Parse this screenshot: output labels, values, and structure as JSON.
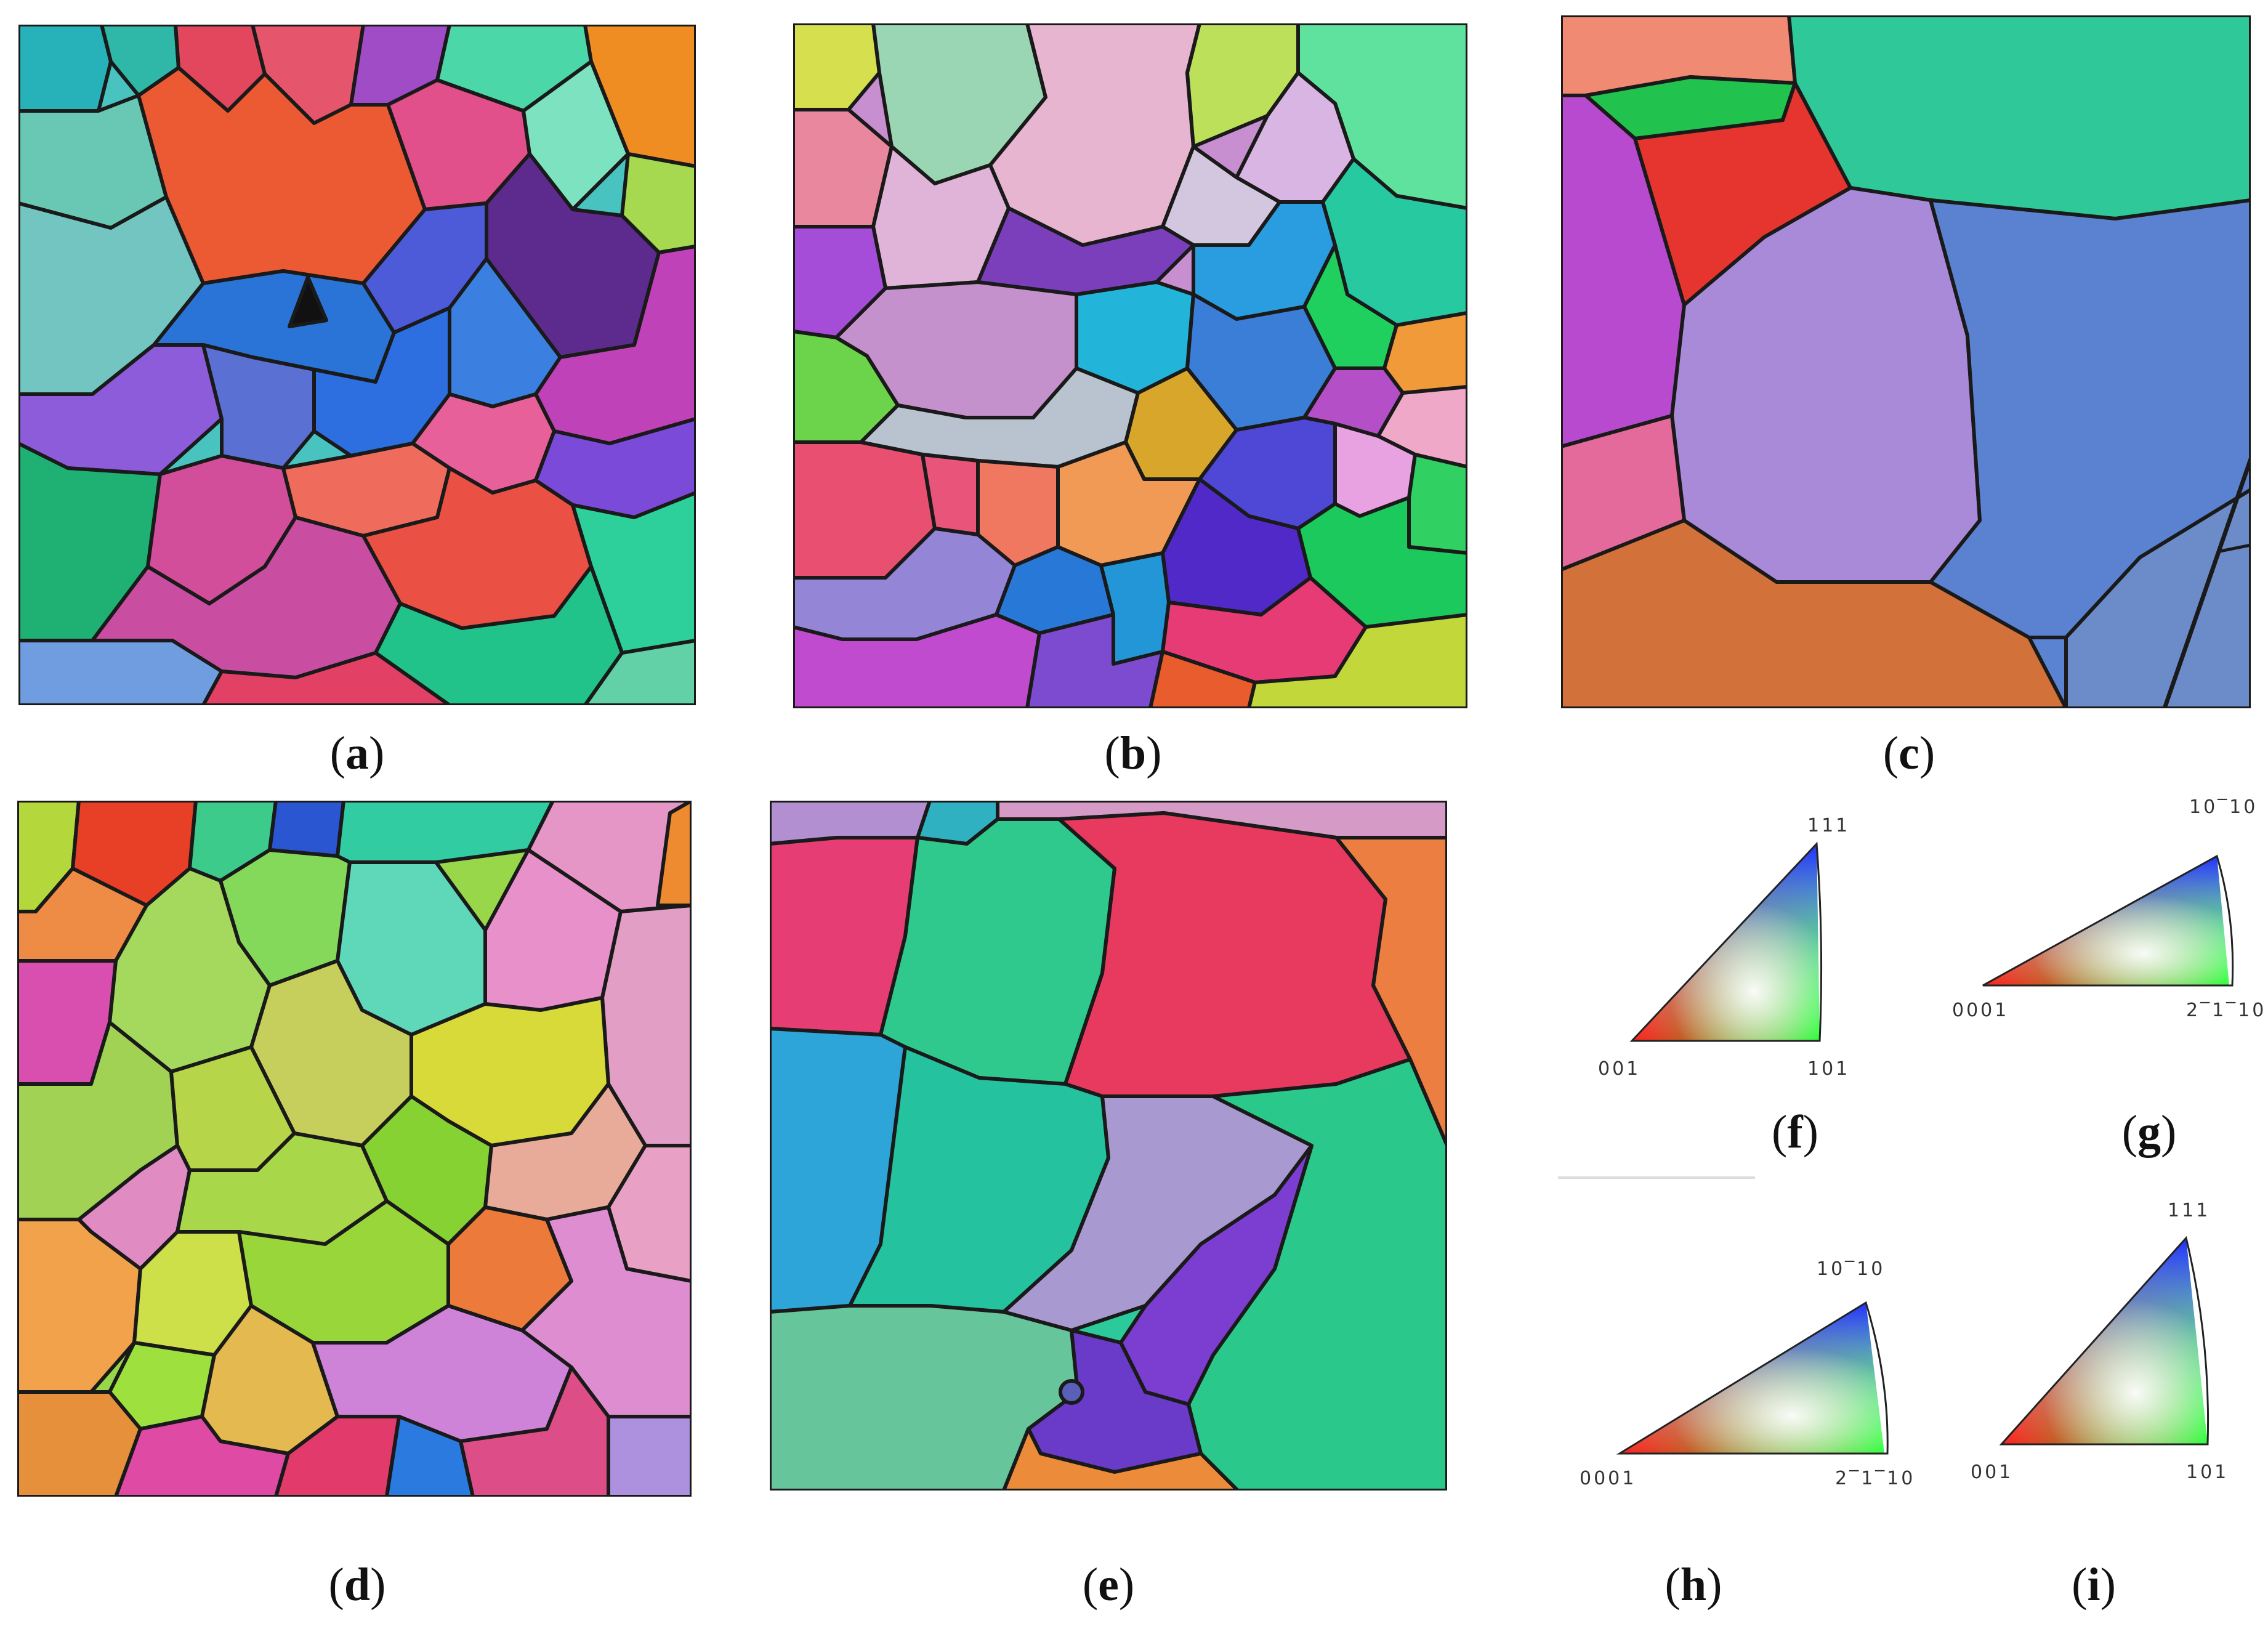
{
  "panels": {
    "a": {
      "label": "a"
    },
    "b": {
      "label": "b"
    },
    "c": {
      "label": "c"
    },
    "d": {
      "label": "d"
    },
    "e": {
      "label": "e"
    },
    "f": {
      "label": "f"
    },
    "g": {
      "label": "g"
    },
    "h": {
      "label": "h"
    },
    "i": {
      "label": "i"
    }
  },
  "legends": {
    "cubic_f": {
      "top": "111",
      "left": "001",
      "right": "101"
    },
    "hex_g": {
      "top": "10‾10",
      "left": "0001",
      "right": "2‾1‾10"
    },
    "hex_h": {
      "top": "10‾10",
      "left": "0001",
      "right": "2‾1‾10"
    },
    "cubic_i": {
      "top": "111",
      "left": "001",
      "right": "101"
    }
  },
  "colors": {
    "red": "#e8473c",
    "green": "#22c55e",
    "blue": "#3b4fd8",
    "boundary": "#1a1a1a"
  }
}
